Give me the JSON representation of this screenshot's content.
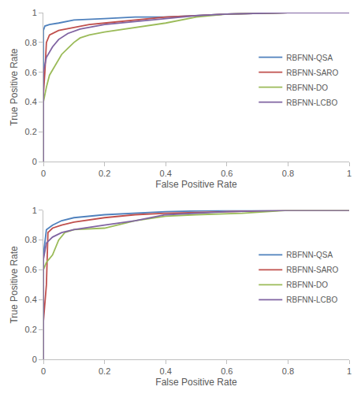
{
  "chart_data": [
    {
      "type": "line",
      "xlabel": "False Positive Rate",
      "ylabel": "True Positive Rate",
      "xlim": [
        0,
        1
      ],
      "xticks": [
        0,
        0.2,
        0.4,
        0.6,
        0.8,
        1
      ],
      "ylim": [
        0,
        1
      ],
      "yticks": [
        0,
        0.2,
        0.4,
        0.6,
        0.8,
        1
      ],
      "grid": false,
      "legend": "right",
      "series": [
        {
          "name": "RBFNN-QSA",
          "color": "#4F81BD",
          "x": [
            0,
            0,
            0.005,
            0.02,
            0.05,
            0.1,
            0.2,
            0.3,
            0.4,
            0.5,
            0.6,
            0.8,
            1
          ],
          "values": [
            0,
            0.88,
            0.91,
            0.92,
            0.93,
            0.95,
            0.96,
            0.97,
            0.97,
            0.98,
            0.99,
            1,
            1
          ]
        },
        {
          "name": "RBFNN-SARO",
          "color": "#C0504D",
          "x": [
            0,
            0,
            0.005,
            0.01,
            0.02,
            0.05,
            0.1,
            0.15,
            0.2,
            0.3,
            0.4,
            0.5,
            0.6,
            0.8,
            1
          ],
          "values": [
            0,
            0.45,
            0.6,
            0.8,
            0.85,
            0.88,
            0.9,
            0.92,
            0.93,
            0.95,
            0.97,
            0.98,
            0.99,
            1,
            1
          ]
        },
        {
          "name": "RBFNN-DO",
          "color": "#9BBB59",
          "x": [
            0,
            0,
            0.01,
            0.02,
            0.04,
            0.06,
            0.08,
            0.1,
            0.12,
            0.15,
            0.2,
            0.3,
            0.4,
            0.5,
            0.6,
            0.8,
            1
          ],
          "values": [
            0,
            0.4,
            0.5,
            0.58,
            0.65,
            0.72,
            0.76,
            0.8,
            0.83,
            0.85,
            0.87,
            0.9,
            0.93,
            0.97,
            0.99,
            1,
            1
          ]
        },
        {
          "name": "RBFNN-LCBO",
          "color": "#8064A2",
          "x": [
            0,
            0,
            0.01,
            0.03,
            0.05,
            0.08,
            0.12,
            0.2,
            0.3,
            0.4,
            0.5,
            0.6,
            0.8,
            1
          ],
          "values": [
            0,
            0.6,
            0.7,
            0.77,
            0.82,
            0.86,
            0.89,
            0.92,
            0.94,
            0.96,
            0.98,
            0.99,
            1,
            1
          ]
        }
      ]
    },
    {
      "type": "line",
      "xlabel": "False Positive Rate",
      "ylabel": "True Positive Rate",
      "xlim": [
        0,
        1
      ],
      "xticks": [
        0,
        0.2,
        0.4,
        0.6,
        0.8,
        1
      ],
      "ylim": [
        0,
        1
      ],
      "yticks": [
        0,
        0.2,
        0.4,
        0.6,
        0.8,
        1
      ],
      "grid": false,
      "legend": "right",
      "series": [
        {
          "name": "RBFNN-QSA",
          "color": "#4F81BD",
          "x": [
            0,
            0,
            0.01,
            0.03,
            0.06,
            0.1,
            0.2,
            0.3,
            0.4,
            0.6,
            1
          ],
          "values": [
            0,
            0.7,
            0.87,
            0.9,
            0.93,
            0.95,
            0.97,
            0.98,
            0.99,
            1,
            1
          ]
        },
        {
          "name": "RBFNN-SARO",
          "color": "#C0504D",
          "x": [
            0,
            0,
            0.01,
            0.015,
            0.03,
            0.06,
            0.1,
            0.2,
            0.3,
            0.4,
            0.6,
            0.8,
            1
          ],
          "values": [
            0,
            0.25,
            0.5,
            0.85,
            0.88,
            0.9,
            0.92,
            0.95,
            0.97,
            0.98,
            0.99,
            1,
            1
          ]
        },
        {
          "name": "RBFNN-DO",
          "color": "#9BBB59",
          "x": [
            0,
            0,
            0.01,
            0.03,
            0.05,
            0.07,
            0.1,
            0.2,
            0.3,
            0.4,
            0.5,
            0.65,
            0.8,
            1
          ],
          "values": [
            0,
            0.6,
            0.65,
            0.7,
            0.8,
            0.85,
            0.87,
            0.88,
            0.93,
            0.96,
            0.97,
            0.98,
            1,
            1
          ]
        },
        {
          "name": "RBFNN-LCBO",
          "color": "#8064A2",
          "x": [
            0,
            0,
            0.01,
            0.03,
            0.06,
            0.1,
            0.2,
            0.3,
            0.4,
            0.5,
            0.6,
            0.8,
            1
          ],
          "values": [
            0,
            0.67,
            0.78,
            0.82,
            0.85,
            0.87,
            0.9,
            0.93,
            0.97,
            0.98,
            0.99,
            1,
            1
          ]
        }
      ]
    }
  ]
}
